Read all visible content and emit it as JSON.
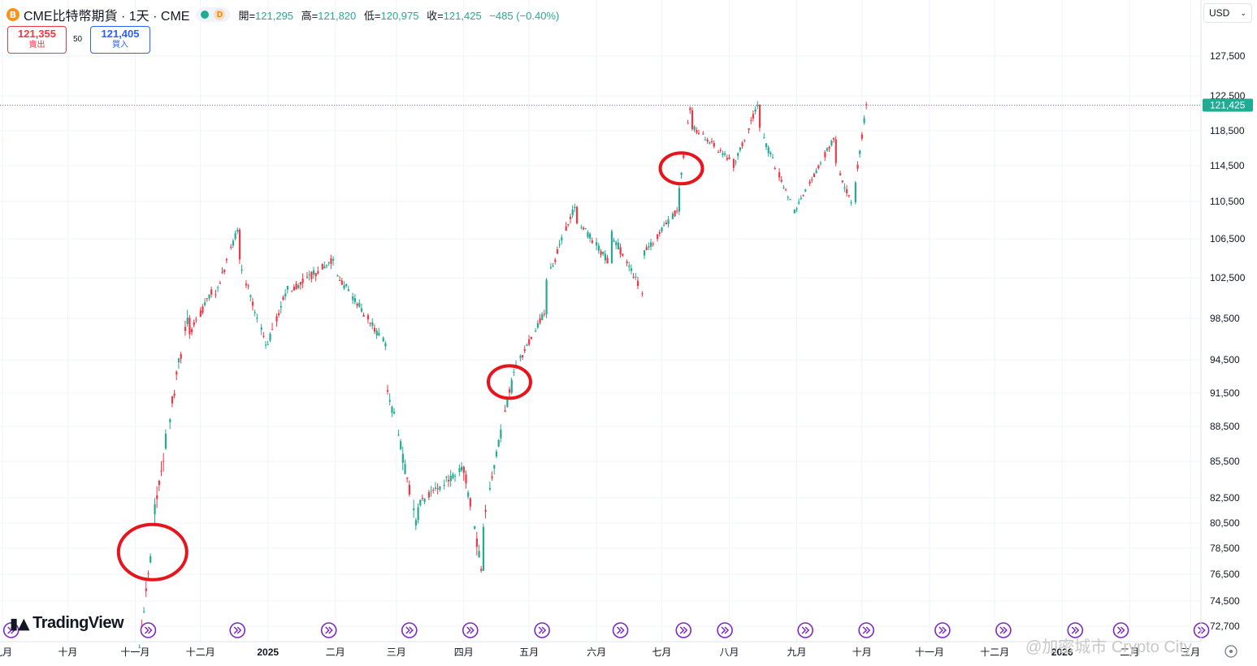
{
  "header": {
    "coin_icon": "B",
    "symbol": "CME比特幣期貨 · 1天 · CME",
    "status_badge": "D",
    "open_label": "開=",
    "open": "121,295",
    "high_label": "高=",
    "high": "121,820",
    "low_label": "低=",
    "low": "120,975",
    "close_label": "收=",
    "close": "121,425",
    "change": "−485 (−0.40%)"
  },
  "trade": {
    "sell_price": "121,355",
    "sell_label": "賣出",
    "spread": "50",
    "buy_price": "121,405",
    "buy_label": "買入"
  },
  "currency": {
    "value": "USD",
    "icon": "chevron-down-icon"
  },
  "logo": {
    "text": "TradingView",
    "mark": "17"
  },
  "watermark": "@加密城市 Crypto City",
  "colors": {
    "up": "#22ab94",
    "down": "#f23645",
    "accent": "#2962ff",
    "annotation": "#e8141b",
    "event": "#7b2cbf"
  },
  "chart_data": {
    "type": "candlestick",
    "series_name": "CME比特幣期貨",
    "last_price": 121425,
    "last_price_label": "121,425",
    "y_axis_labels": [
      {
        "label": "127,500",
        "value": 127500
      },
      {
        "label": "122,500",
        "value": 122500
      },
      {
        "label": "118,500",
        "value": 118500
      },
      {
        "label": "114,500",
        "value": 114500
      },
      {
        "label": "110,500",
        "value": 110500
      },
      {
        "label": "106,500",
        "value": 106500
      },
      {
        "label": "102,500",
        "value": 102500
      },
      {
        "label": "98,500",
        "value": 98500
      },
      {
        "label": "94,500",
        "value": 94500
      },
      {
        "label": "91,500",
        "value": 91500
      },
      {
        "label": "88,500",
        "value": 88500
      },
      {
        "label": "85,500",
        "value": 85500
      },
      {
        "label": "82,500",
        "value": 82500
      },
      {
        "label": "80,500",
        "value": 80500
      },
      {
        "label": "78,500",
        "value": 78500
      },
      {
        "label": "76,500",
        "value": 76500
      },
      {
        "label": "74,500",
        "value": 74500
      },
      {
        "label": "72,700",
        "value": 72700
      }
    ],
    "x_axis_labels": [
      {
        "label": "九月",
        "date": "2024-09-01",
        "bold": false
      },
      {
        "label": "十月",
        "date": "2024-10-01",
        "bold": false
      },
      {
        "label": "十一月",
        "date": "2024-11-01",
        "bold": false
      },
      {
        "label": "十二月",
        "date": "2024-12-01",
        "bold": false
      },
      {
        "label": "2025",
        "date": "2025-01-01",
        "bold": true
      },
      {
        "label": "二月",
        "date": "2025-02-01",
        "bold": false
      },
      {
        "label": "三月",
        "date": "2025-03-01",
        "bold": false
      },
      {
        "label": "四月",
        "date": "2025-04-01",
        "bold": false
      },
      {
        "label": "五月",
        "date": "2025-05-01",
        "bold": false
      },
      {
        "label": "六月",
        "date": "2025-06-01",
        "bold": false
      },
      {
        "label": "七月",
        "date": "2025-07-01",
        "bold": false
      },
      {
        "label": "八月",
        "date": "2025-08-01",
        "bold": false
      },
      {
        "label": "九月",
        "date": "2025-09-01",
        "bold": false
      },
      {
        "label": "十月",
        "date": "2025-10-01",
        "bold": false
      },
      {
        "label": "十一月",
        "date": "2025-11-01",
        "bold": false
      },
      {
        "label": "十二月",
        "date": "2025-12-01",
        "bold": false
      },
      {
        "label": "2026",
        "date": "2026-01-01",
        "bold": true
      },
      {
        "label": "二月",
        "date": "2026-02-01",
        "bold": false
      },
      {
        "label": "三月",
        "date": "2026-03-01",
        "bold": false
      }
    ],
    "segments": [
      {
        "start": "2024-11-03",
        "end": "2024-11-08",
        "from": 71500,
        "to": 77800,
        "vol": 0.4
      },
      {
        "start": "2024-11-09",
        "end": "2024-11-25",
        "from": 80500,
        "to": 98500,
        "vol": 0.6
      },
      {
        "start": "2024-11-26",
        "end": "2024-12-06",
        "from": 97000,
        "to": 101000,
        "vol": 0.35
      },
      {
        "start": "2024-12-07",
        "end": "2024-12-18",
        "from": 100000,
        "to": 107500,
        "vol": 0.35
      },
      {
        "start": "2024-12-19",
        "end": "2024-12-31",
        "from": 104000,
        "to": 96000,
        "vol": 0.4
      },
      {
        "start": "2025-01-01",
        "end": "2025-01-10",
        "from": 96000,
        "to": 101500,
        "vol": 0.45
      },
      {
        "start": "2025-01-11",
        "end": "2025-01-31",
        "from": 101000,
        "to": 104500,
        "vol": 0.4
      },
      {
        "start": "2025-02-01",
        "end": "2025-02-24",
        "from": 103000,
        "to": 96000,
        "vol": 0.35
      },
      {
        "start": "2025-02-25",
        "end": "2025-03-10",
        "from": 92000,
        "to": 80500,
        "vol": 0.5
      },
      {
        "start": "2025-03-11",
        "end": "2025-03-31",
        "from": 82000,
        "to": 85000,
        "vol": 0.35
      },
      {
        "start": "2025-04-01",
        "end": "2025-04-09",
        "from": 85000,
        "to": 77000,
        "vol": 0.5
      },
      {
        "start": "2025-04-10",
        "end": "2025-04-22",
        "from": 80500,
        "to": 91500,
        "vol": 0.4
      },
      {
        "start": "2025-04-23",
        "end": "2025-05-08",
        "from": 93000,
        "to": 99000,
        "vol": 0.3
      },
      {
        "start": "2025-05-09",
        "end": "2025-05-22",
        "from": 102000,
        "to": 110000,
        "vol": 0.35
      },
      {
        "start": "2025-05-23",
        "end": "2025-06-07",
        "from": 108500,
        "to": 104000,
        "vol": 0.35
      },
      {
        "start": "2025-06-08",
        "end": "2025-06-22",
        "from": 107000,
        "to": 101000,
        "vol": 0.35
      },
      {
        "start": "2025-06-23",
        "end": "2025-07-08",
        "from": 105000,
        "to": 109500,
        "vol": 0.3
      },
      {
        "start": "2025-07-09",
        "end": "2025-07-14",
        "from": 112000,
        "to": 121000,
        "vol": 0.35
      },
      {
        "start": "2025-07-15",
        "end": "2025-08-02",
        "from": 119000,
        "to": 115000,
        "vol": 0.3
      },
      {
        "start": "2025-08-03",
        "end": "2025-08-14",
        "from": 114500,
        "to": 121500,
        "vol": 0.35
      },
      {
        "start": "2025-08-15",
        "end": "2025-08-31",
        "from": 118500,
        "to": 109500,
        "vol": 0.35
      },
      {
        "start": "2025-09-01",
        "end": "2025-09-18",
        "from": 110000,
        "to": 117500,
        "vol": 0.3
      },
      {
        "start": "2025-09-19",
        "end": "2025-09-27",
        "from": 114500,
        "to": 110000,
        "vol": 0.35
      },
      {
        "start": "2025-09-28",
        "end": "2025-10-03",
        "from": 112500,
        "to": 121425,
        "vol": 0.35
      }
    ],
    "annotations": [
      {
        "type": "circle",
        "date": "2024-11-09",
        "price": 78200
      },
      {
        "type": "circle",
        "date": "2025-04-22",
        "price": 92500
      },
      {
        "type": "circle",
        "date": "2025-07-10",
        "price": 114200
      }
    ],
    "event_markers": [
      "2024-09-05",
      "2024-11-07",
      "2024-12-18",
      "2025-01-29",
      "2025-03-07",
      "2025-04-04",
      "2025-05-07",
      "2025-06-12",
      "2025-07-11",
      "2025-07-30",
      "2025-09-05",
      "2025-10-03",
      "2025-11-07",
      "2025-12-05",
      "2026-01-07",
      "2026-01-28",
      "2026-03-06"
    ],
    "grid": true
  }
}
